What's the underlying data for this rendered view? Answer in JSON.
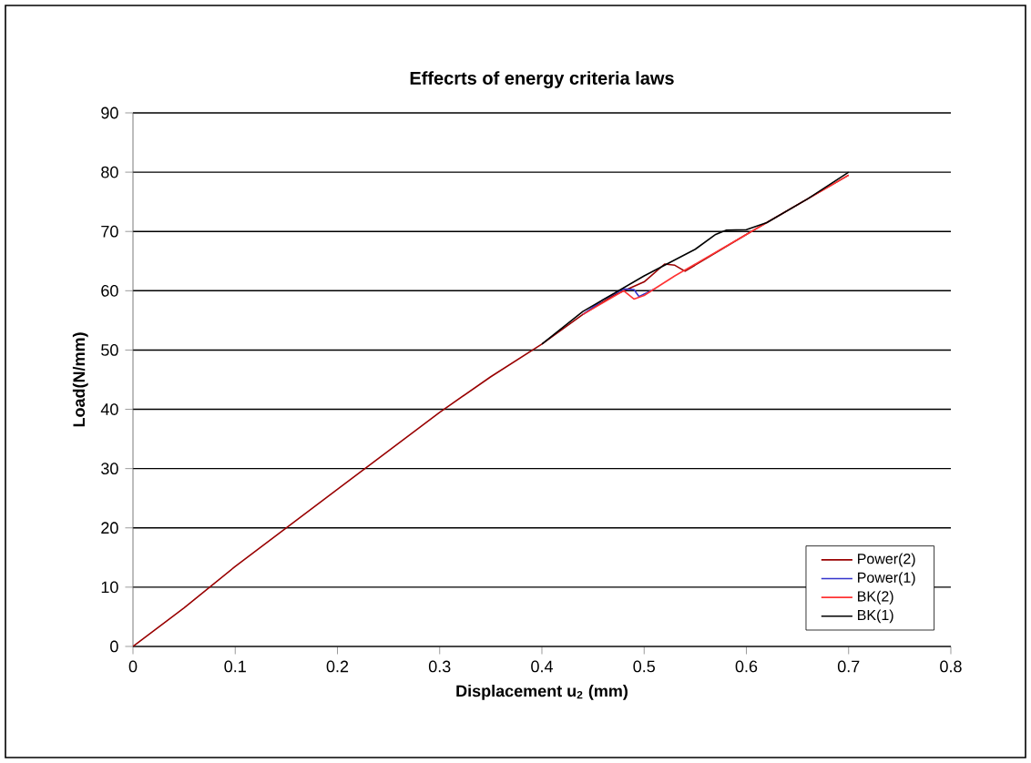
{
  "chart_data": {
    "type": "line",
    "title": "Effecrts of energy criteria laws",
    "xlabel": "Displacement u$_{2}$ (mm)",
    "ylabel": "Load(N/mm)",
    "xlim": [
      0,
      0.8
    ],
    "xticks": [
      0,
      0.1,
      0.2,
      0.3,
      0.4,
      0.5,
      0.6,
      0.7,
      0.8
    ],
    "ylim": [
      0,
      90
    ],
    "yticks": [
      0,
      10,
      20,
      30,
      40,
      50,
      60,
      70,
      80,
      90
    ],
    "grid": "y",
    "legend": "bottom right",
    "marker": "none",
    "line_style": "solid",
    "series": [
      {
        "name": "Power(2)",
        "color": "#990000",
        "x": [
          0,
          0.05,
          0.1,
          0.15,
          0.2,
          0.25,
          0.3,
          0.35,
          0.4,
          0.44,
          0.47,
          0.5,
          0.52,
          0.53,
          0.54,
          0.6,
          0.65,
          0.7
        ],
        "values": [
          0,
          6.5,
          13.5,
          20,
          26.5,
          33,
          39.5,
          45.5,
          51,
          56,
          59.2,
          61.5,
          64.5,
          64.3,
          63.3,
          69.5,
          74.5,
          79.5
        ]
      },
      {
        "name": "Power(1)",
        "color": "#3333cc",
        "x": [
          0.44,
          0.46,
          0.48,
          0.49,
          0.495,
          0.51
        ],
        "values": [
          56,
          58.5,
          60.3,
          60.2,
          59,
          60.3
        ]
      },
      {
        "name": "BK(2)",
        "color": "#ff3333",
        "x": [
          0.44,
          0.48,
          0.49,
          0.5,
          0.53,
          0.6,
          0.65,
          0.7
        ],
        "values": [
          56,
          60,
          58.6,
          59.2,
          62.5,
          69.5,
          74.5,
          79.5
        ]
      },
      {
        "name": "BK(1)",
        "color": "#000000",
        "x": [
          0.4,
          0.44,
          0.5,
          0.55,
          0.57,
          0.58,
          0.6,
          0.62,
          0.66,
          0.7
        ],
        "values": [
          51,
          56.5,
          62.5,
          67,
          69.5,
          70.2,
          70.3,
          71.5,
          75.5,
          80
        ]
      }
    ]
  }
}
